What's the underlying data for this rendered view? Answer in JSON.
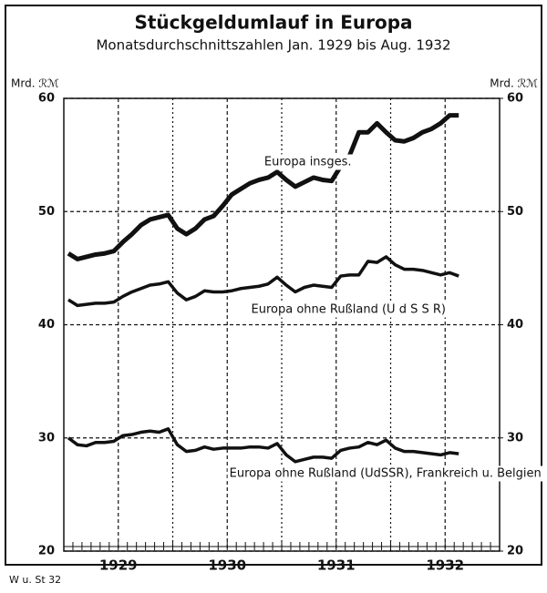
{
  "chart_data": {
    "type": "line",
    "title": "Stückgeldumlauf in Europa",
    "subtitle": "Monatsdurchschnittszahlen Jan. 1929 bis Aug. 1932",
    "y_label": "Mrd. ℛℳ",
    "y2_label": "Mrd. ℛℳ",
    "source": "W u. St 32",
    "x": [
      0.5,
      1.5,
      2.5,
      3.5,
      4.5,
      5.5,
      6.5,
      7.5,
      8.5,
      9.5,
      10.5,
      11.5,
      12.5,
      13.5,
      14.5,
      15.5,
      16.5,
      17.5,
      18.5,
      19.5,
      20.5,
      21.5,
      22.5,
      23.5,
      24.5,
      25.5,
      26.5,
      27.5,
      28.5,
      29.5,
      30.5,
      31.5,
      32.5,
      33.5,
      34.5,
      35.5,
      36.5,
      37.5,
      38.5,
      39.5,
      40.5,
      41.5,
      42.5,
      43.5
    ],
    "xlim": [
      0,
      48
    ],
    "xticks": [
      {
        "value": 6,
        "label": "1929"
      },
      {
        "value": 18,
        "label": "1930"
      },
      {
        "value": 30,
        "label": "1931"
      },
      {
        "value": 42,
        "label": "1932"
      }
    ],
    "ylim": [
      20,
      60
    ],
    "yticks": [
      20,
      30,
      40,
      50,
      60
    ],
    "y2lim": [
      20,
      60
    ],
    "y2ticks": [
      20,
      30,
      40,
      50,
      60
    ],
    "grid": true,
    "series": [
      {
        "name": "Europa insges.",
        "color": "#111111",
        "values": [
          46.3,
          45.8,
          46.0,
          46.2,
          46.3,
          46.5,
          47.3,
          48.0,
          48.8,
          49.3,
          49.5,
          49.7,
          48.5,
          48.0,
          48.5,
          49.3,
          49.6,
          50.5,
          51.5,
          52.0,
          52.5,
          52.8,
          53.0,
          53.5,
          52.8,
          52.2,
          52.6,
          53.0,
          52.8,
          52.7,
          54.0,
          55.0,
          57.0,
          57.0,
          57.8,
          57.0,
          56.3,
          56.2,
          56.5,
          57.0,
          57.3,
          57.8,
          58.5,
          58.5
        ]
      },
      {
        "name": "Europa ohne Rußland (U d S S R)",
        "color": "#111111",
        "values": [
          42.2,
          41.7,
          41.8,
          41.9,
          41.9,
          42.0,
          42.5,
          42.9,
          43.2,
          43.5,
          43.6,
          43.8,
          42.8,
          42.2,
          42.5,
          43.0,
          42.9,
          42.9,
          43.0,
          43.2,
          43.3,
          43.4,
          43.6,
          44.2,
          43.5,
          42.9,
          43.3,
          43.5,
          43.4,
          43.3,
          44.3,
          44.4,
          44.4,
          45.6,
          45.5,
          46.0,
          45.3,
          44.9,
          44.9,
          44.8,
          44.6,
          44.4,
          44.6,
          44.3
        ]
      },
      {
        "name": "Europa ohne Rußland (UdSSR), Frankreich u. Belgien",
        "color": "#111111",
        "values": [
          30.0,
          29.4,
          29.3,
          29.6,
          29.6,
          29.7,
          30.2,
          30.3,
          30.5,
          30.6,
          30.5,
          30.8,
          29.4,
          28.8,
          28.9,
          29.2,
          29.0,
          29.1,
          29.1,
          29.1,
          29.2,
          29.2,
          29.1,
          29.5,
          28.5,
          27.9,
          28.1,
          28.3,
          28.3,
          28.2,
          28.9,
          29.1,
          29.2,
          29.6,
          29.4,
          29.8,
          29.1,
          28.8,
          28.8,
          28.7,
          28.6,
          28.5,
          28.7,
          28.6
        ]
      }
    ]
  }
}
